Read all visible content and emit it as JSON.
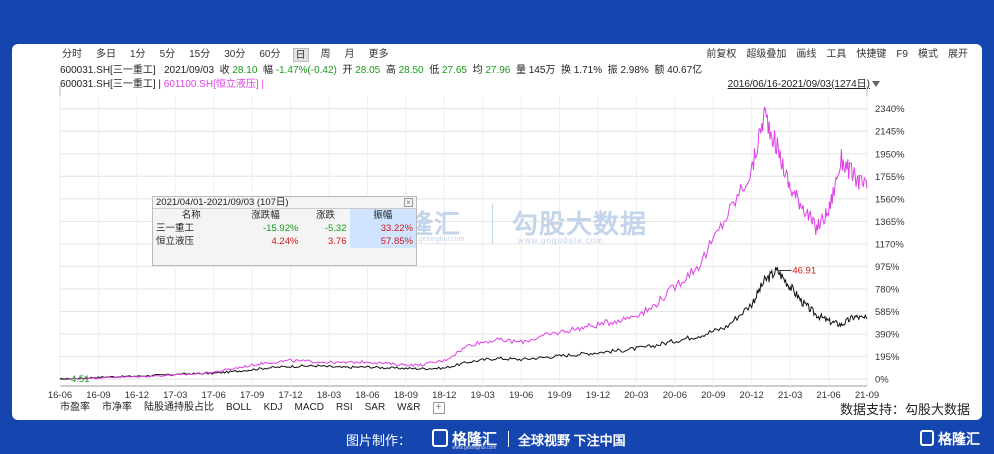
{
  "toolbar": {
    "periods": [
      "分时",
      "多日",
      "1分",
      "5分",
      "15分",
      "30分",
      "60分",
      "日",
      "周",
      "月",
      "更多"
    ],
    "active_period": "日",
    "right_tools": [
      "前复权",
      "超级叠加",
      "画线",
      "工具",
      "快捷键",
      "F9",
      "模式",
      "展开"
    ]
  },
  "quote": {
    "code": "600031.SH[三一重工]",
    "date": "2021/09/03",
    "close_label": "收",
    "close": "28.10",
    "change_label": "幅",
    "change": "-1.47%(-0.42)",
    "open_label": "开",
    "open": "28.05",
    "high_label": "高",
    "high": "28.50",
    "low_label": "低",
    "low": "27.65",
    "avg_label": "均",
    "avg": "27.96",
    "vol_label": "量",
    "vol": "145万",
    "turnover_label": "换",
    "turnover": "1.71%",
    "amplitude_label": "振",
    "amplitude": "2.98%",
    "amount_label": "额",
    "amount": "40.67亿"
  },
  "legend": {
    "series1": "600031.SH[三一重工]",
    "separator": "|",
    "series2": "601100.SH[恒立液压]",
    "separator2": "|",
    "range": "2016/06/16-2021/09/03(1274日)"
  },
  "popup": {
    "title": "2021/04/01-2021/09/03 (107日)",
    "close_mark": "×",
    "headers": [
      "名称",
      "涨跌幅",
      "涨跌",
      "振幅"
    ],
    "rows": [
      {
        "name": "三一重工",
        "pct": "-15.92%",
        "chg": "-5.32",
        "amp": "33.22%"
      },
      {
        "name": "恒立液压",
        "pct": "4.24%",
        "chg": "3.76",
        "amp": "57.85%"
      }
    ]
  },
  "watermark": {
    "brand1": "格隆汇",
    "brand1_sub": "www.gelonghui.com",
    "brand2": "勾股大数据",
    "brand2_sub": "www.gogudata.com"
  },
  "bottom_tabs": [
    "市盈率",
    "市净率",
    "陆股通持股占比",
    "BOLL",
    "KDJ",
    "MACD",
    "RSI",
    "SAR",
    "W&R"
  ],
  "bottom_plus": "+",
  "support": "数据支持：勾股大数据",
  "footer": {
    "made_by": "图片制作：",
    "brand": "格隆汇",
    "brand_sub": "www.gelonghui.com",
    "slogan": "全球视野 下注中国",
    "right_brand": "格隆汇"
  },
  "chart_data": {
    "type": "line",
    "y_unit": "%",
    "ylim": [
      -60,
      2450
    ],
    "y_ticks": [
      "2340%",
      "2145%",
      "1950%",
      "1755%",
      "1560%",
      "1365%",
      "1170%",
      "975%",
      "780%",
      "585%",
      "390%",
      "195%",
      "0%"
    ],
    "y_tick_values": [
      2340,
      2145,
      1950,
      1755,
      1560,
      1365,
      1170,
      975,
      780,
      585,
      390,
      195,
      0
    ],
    "x_ticks": [
      "16-06",
      "16-09",
      "16-12",
      "17-03",
      "17-06",
      "17-09",
      "17-12",
      "18-03",
      "18-06",
      "18-09",
      "18-12",
      "19-03",
      "19-06",
      "19-09",
      "19-12",
      "20-03",
      "20-06",
      "20-09",
      "20-12",
      "21-03",
      "21-06",
      "21-09"
    ],
    "grid": true,
    "annotations": [
      {
        "label": "46.91",
        "x": "21-02",
        "series": "600031.SH[三一重工]",
        "kind": "high"
      },
      {
        "label": "4.51",
        "x": "16-06",
        "series": "600031.SH[三一重工]",
        "kind": "low"
      }
    ],
    "series": [
      {
        "name": "600031.SH[三一重工]",
        "color": "#111111",
        "x": [
          "16-06",
          "16-08",
          "16-10",
          "16-12",
          "17-02",
          "17-04",
          "17-06",
          "17-08",
          "17-10",
          "17-12",
          "18-02",
          "18-04",
          "18-06",
          "18-08",
          "18-10",
          "18-12",
          "19-02",
          "19-04",
          "19-06",
          "19-08",
          "19-10",
          "19-12",
          "20-02",
          "20-04",
          "20-06",
          "20-08",
          "20-10",
          "20-12",
          "21-01",
          "21-02",
          "21-03",
          "21-04",
          "21-05",
          "21-06",
          "21-07",
          "21-08",
          "21-09"
        ],
        "values": [
          0,
          10,
          20,
          25,
          35,
          45,
          50,
          70,
          95,
          110,
          115,
          100,
          105,
          95,
          90,
          95,
          150,
          180,
          170,
          190,
          210,
          230,
          250,
          280,
          330,
          380,
          450,
          650,
          850,
          940,
          800,
          660,
          560,
          500,
          470,
          540,
          520
        ]
      },
      {
        "name": "601100.SH[恒立液压]",
        "color": "#e040e8",
        "x": [
          "16-06",
          "16-08",
          "16-10",
          "16-12",
          "17-02",
          "17-04",
          "17-06",
          "17-08",
          "17-10",
          "17-12",
          "18-02",
          "18-04",
          "18-06",
          "18-08",
          "18-10",
          "18-12",
          "19-02",
          "19-04",
          "19-06",
          "19-08",
          "19-10",
          "19-12",
          "20-02",
          "20-04",
          "20-06",
          "20-08",
          "20-10",
          "20-12",
          "21-01",
          "21-02",
          "21-03",
          "21-04",
          "21-05",
          "21-06",
          "21-07",
          "21-08",
          "21-09"
        ],
        "values": [
          0,
          5,
          15,
          20,
          30,
          40,
          60,
          100,
          140,
          160,
          150,
          140,
          150,
          130,
          120,
          160,
          300,
          340,
          320,
          380,
          430,
          470,
          520,
          600,
          800,
          1000,
          1400,
          1800,
          2300,
          2000,
          1650,
          1500,
          1300,
          1450,
          1900,
          1750,
          1650
        ]
      }
    ]
  }
}
